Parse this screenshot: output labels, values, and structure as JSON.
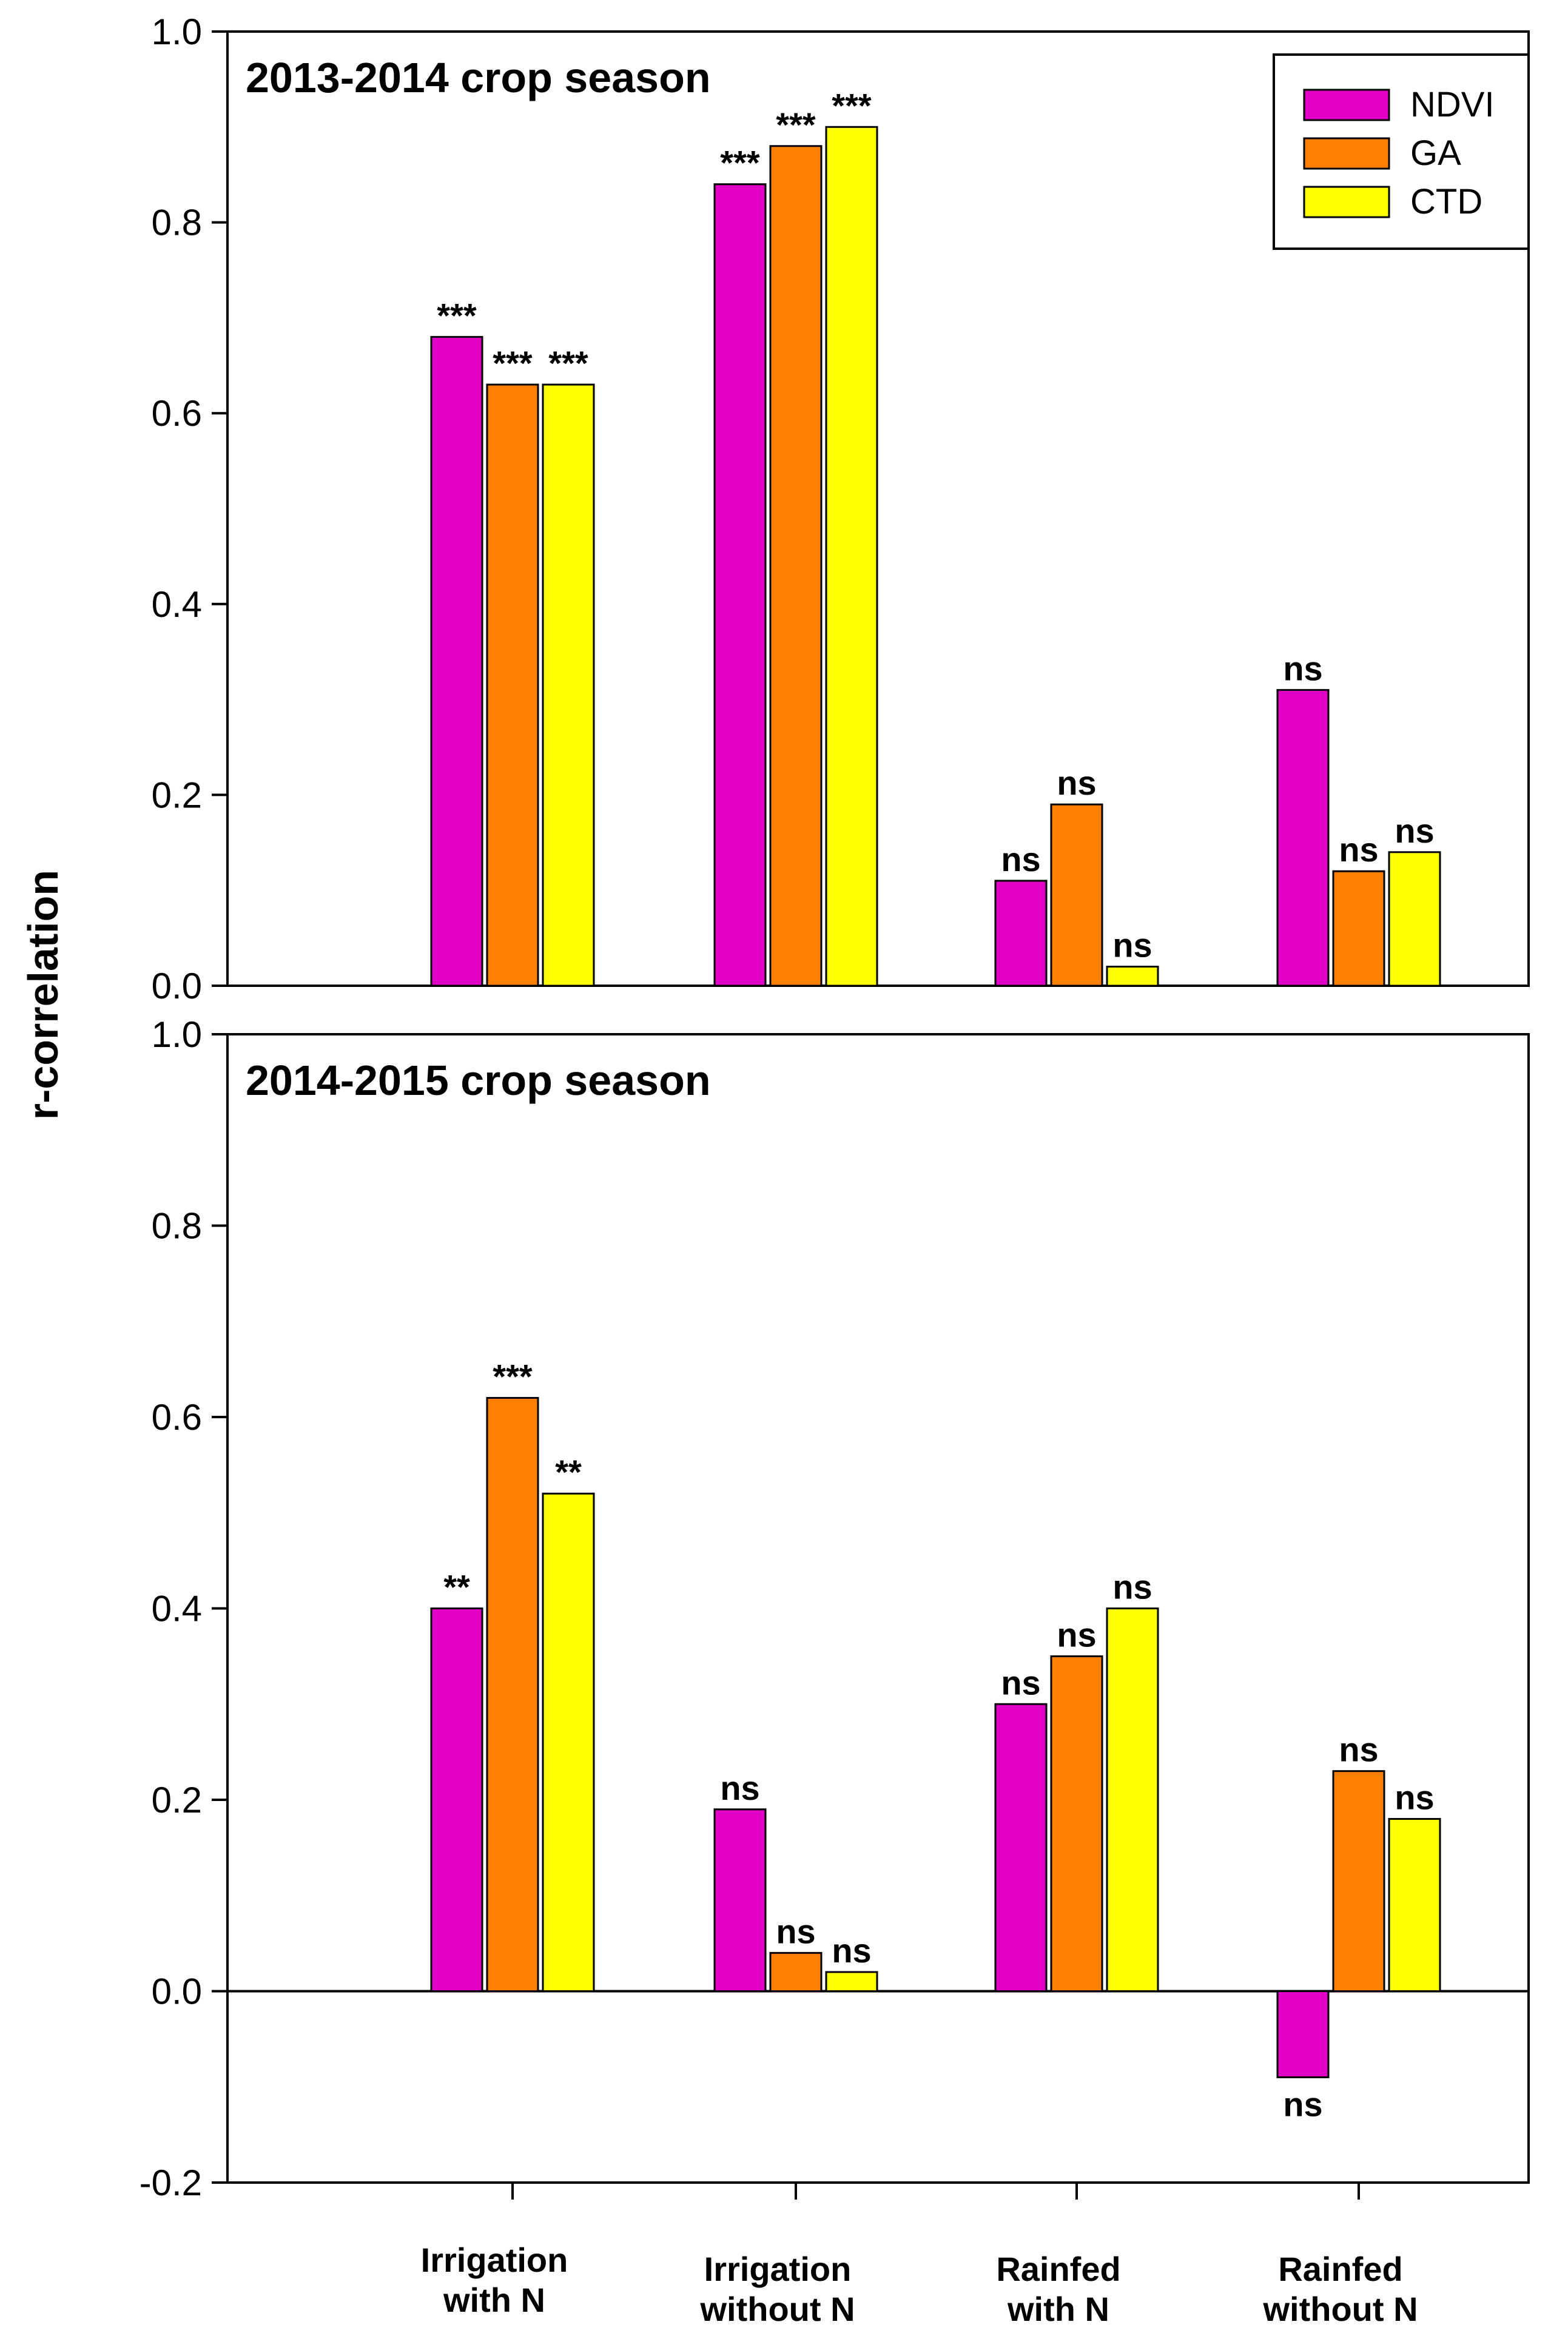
{
  "chart_data": {
    "type": "bar",
    "ylabel": "r-correlation",
    "categories": [
      "Irrigation\nwith N",
      "Irrigation\nwithout N",
      "Rainfed\nwith N",
      "Rainfed\nwithout N"
    ],
    "legend": {
      "placement": "top-right",
      "entries": [
        "NDVI",
        "GA",
        "CTD"
      ]
    },
    "colors": {
      "NDVI": "#e000c6",
      "GA": "#ff8000",
      "CTD": "#ffff00"
    },
    "panels": [
      {
        "title": "2013-2014 crop season",
        "ylim": [
          0,
          1.0
        ],
        "yticks": [
          "0.0",
          "0.2",
          "0.4",
          "0.6",
          "0.8",
          "1.0"
        ],
        "series": [
          {
            "name": "NDVI",
            "values": [
              0.68,
              0.84,
              0.11,
              0.31
            ],
            "significance": [
              "***",
              "***",
              "ns",
              "ns"
            ]
          },
          {
            "name": "GA",
            "values": [
              0.63,
              0.88,
              0.19,
              0.12
            ],
            "significance": [
              "***",
              "***",
              "ns",
              "ns"
            ]
          },
          {
            "name": "CTD",
            "values": [
              0.63,
              0.9,
              0.02,
              0.14
            ],
            "significance": [
              "***",
              "***",
              "ns",
              "ns"
            ]
          }
        ]
      },
      {
        "title": "2014-2015 crop season",
        "ylim": [
          -0.2,
          1.0
        ],
        "yticks": [
          "-0.2",
          "0.0",
          "0.2",
          "0.4",
          "0.6",
          "0.8",
          "1.0"
        ],
        "series": [
          {
            "name": "NDVI",
            "values": [
              0.4,
              0.19,
              0.3,
              -0.09
            ],
            "significance": [
              "**",
              "ns",
              "ns",
              "ns"
            ]
          },
          {
            "name": "GA",
            "values": [
              0.62,
              0.04,
              0.35,
              0.23
            ],
            "significance": [
              "***",
              "ns",
              "ns",
              "ns"
            ]
          },
          {
            "name": "CTD",
            "values": [
              0.52,
              0.02,
              0.4,
              0.18
            ],
            "significance": [
              "**",
              "ns",
              "ns",
              "ns"
            ]
          }
        ]
      }
    ]
  }
}
